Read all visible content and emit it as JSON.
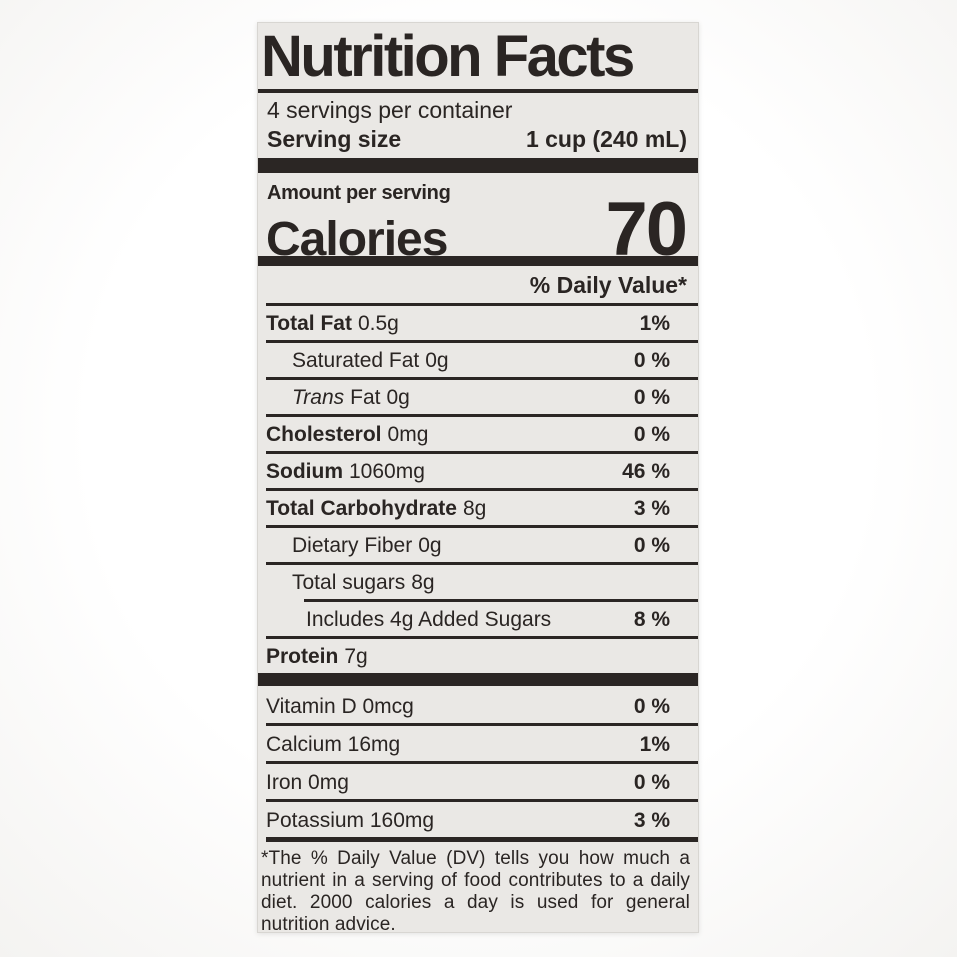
{
  "label": {
    "title": "Nutrition Facts",
    "servings_per_container": "4 servings per container",
    "serving_size": {
      "label": "Serving size",
      "value": "1 cup (240 mL)"
    },
    "amount_per_serving": "Amount per serving",
    "calories": {
      "label": "Calories",
      "value": "70"
    },
    "daily_value_header": "% Daily Value*",
    "nutrients": [
      {
        "name": "Total Fat",
        "amount": "0.5g",
        "dv": "1%"
      },
      {
        "name": "Saturated Fat",
        "amount": "0g",
        "dv": "0 %"
      },
      {
        "name_italic": "Trans",
        "name": "Fat",
        "amount": "0g",
        "dv": "0 %"
      },
      {
        "name": "Cholesterol",
        "amount": "0mg",
        "dv": "0 %"
      },
      {
        "name": "Sodium",
        "amount": "1060mg",
        "dv": "46 %"
      },
      {
        "name": "Total Carbohydrate",
        "amount": "8g",
        "dv": "3 %"
      },
      {
        "name": "Dietary Fiber",
        "amount": "0g",
        "dv": "0 %"
      },
      {
        "name": "Total sugars",
        "amount": "8g",
        "dv": ""
      },
      {
        "name": "Includes 4g Added Sugars",
        "amount": "",
        "dv": "8 %"
      },
      {
        "name": "Protein",
        "amount": "7g",
        "dv": ""
      }
    ],
    "vitamins": [
      {
        "name": "Vitamin D 0mcg",
        "dv": "0 %"
      },
      {
        "name": "Calcium 16mg",
        "dv": "1%"
      },
      {
        "name": "Iron 0mg",
        "dv": "0 %"
      },
      {
        "name": "Potassium 160mg",
        "dv": "3 %"
      }
    ],
    "footnote": "*The % Daily Value (DV) tells you how much a nutrient in a serving of food contributes to a daily diet. 2000 calories a day is used for general nutrition advice.",
    "ink_color": "#2b2624",
    "label_background": "#eae8e5"
  }
}
